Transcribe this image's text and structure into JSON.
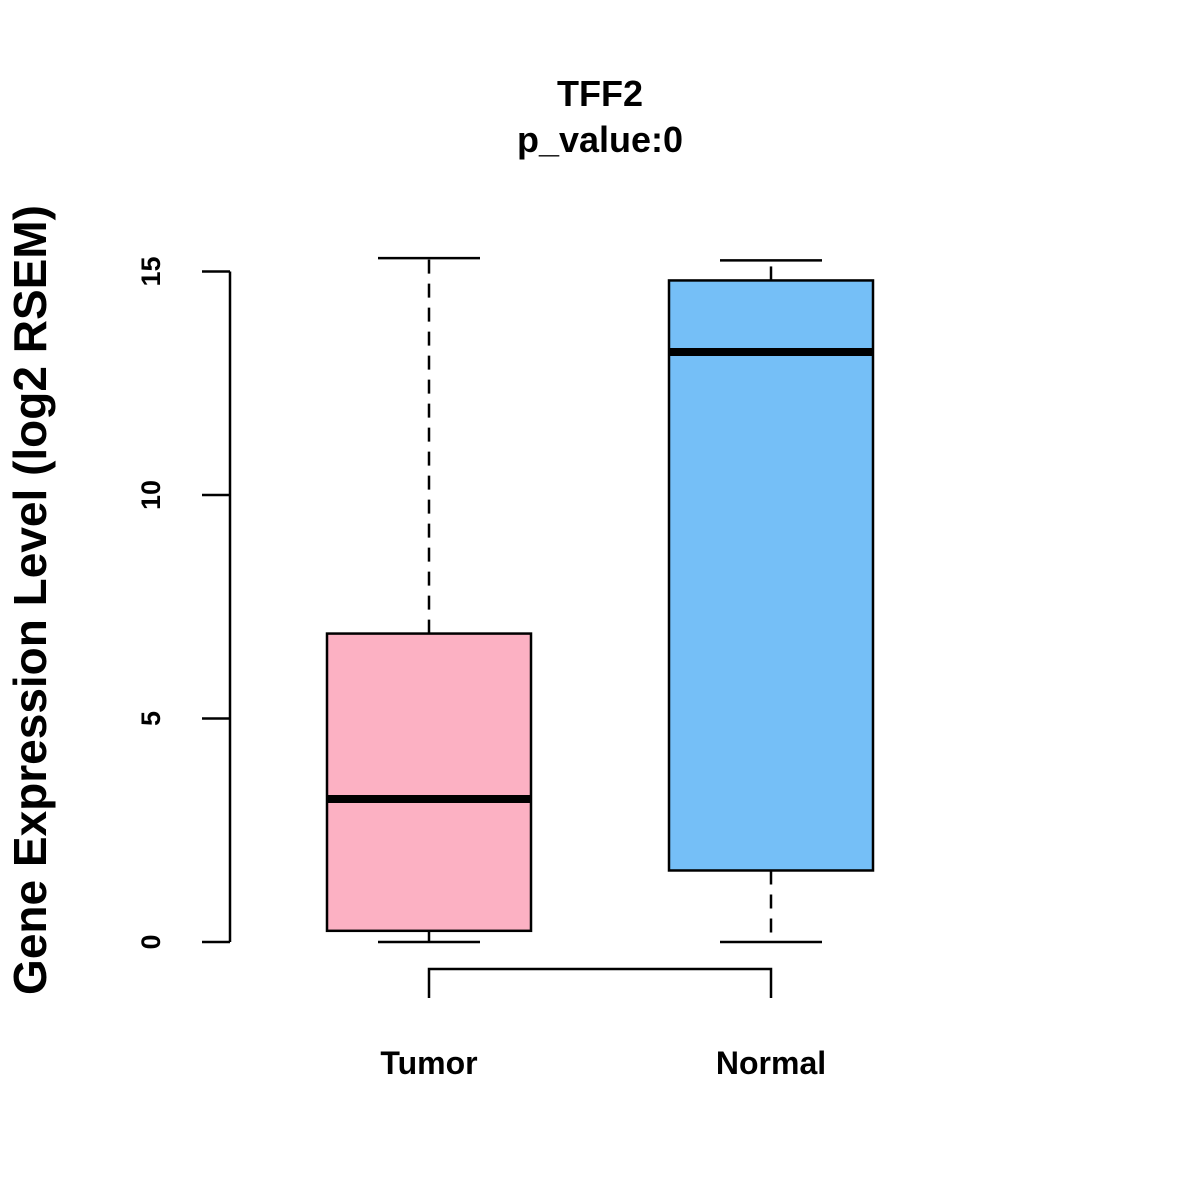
{
  "chart_data": {
    "type": "boxplot",
    "title": "TFF2",
    "subtitle": "p_value:0",
    "xlabel": "",
    "ylabel": "Gene Expression Level (log2 RSEM)",
    "ylim": [
      0,
      15.5
    ],
    "yticks": [
      0,
      5,
      10,
      15
    ],
    "categories": [
      "Tumor",
      "Normal"
    ],
    "series": [
      {
        "name": "Tumor",
        "min": 0.0,
        "q1": 0.25,
        "median": 3.2,
        "q3": 6.9,
        "max": 15.3,
        "color": "#FCB1C3"
      },
      {
        "name": "Normal",
        "min": 0.0,
        "q1": 1.6,
        "median": 13.2,
        "q3": 14.8,
        "max": 15.25,
        "color": "#75BFF7"
      }
    ],
    "comparison_bracket": [
      "Tumor",
      "Normal"
    ]
  }
}
